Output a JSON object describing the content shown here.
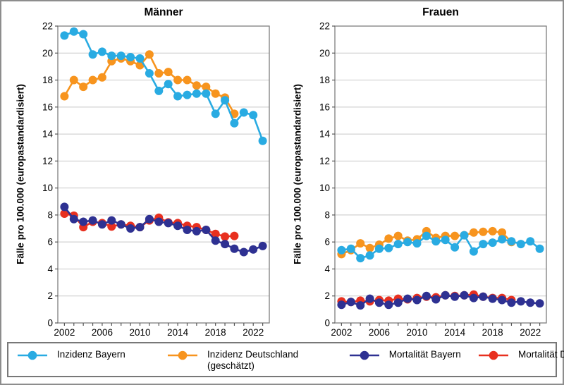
{
  "figure": {
    "kind": "dual-panel line chart",
    "background": "#ffffff",
    "frame_color": "#8d8d8d",
    "grid_color": "#c8c8c8",
    "axis_color": "#7e7e7e",
    "tick_color": "#555555",
    "text_color": "#000000"
  },
  "legend": {
    "items": [
      {
        "label": "Inzidenz Bayern",
        "sublabel": "",
        "color": "#29ABE2",
        "marker": "line-dot"
      },
      {
        "label": "Inzidenz Deutschland",
        "sublabel": "(geschätzt)",
        "color": "#F7941E",
        "marker": "line-dot"
      },
      {
        "label": "Mortalität Bayern",
        "sublabel": "",
        "color": "#2E3192",
        "marker": "line-dot"
      },
      {
        "label": "Mortalität Deutschland",
        "sublabel": "",
        "color": "#E8301F",
        "marker": "line-dot"
      }
    ]
  },
  "chart_data": [
    {
      "type": "line",
      "title": "Männer",
      "ylabel": "Fälle pro 100.000 (europastandardisiert)",
      "xlabel": "",
      "ylim": [
        0,
        22
      ],
      "ytick_step": 2,
      "xlim": [
        2001.3,
        2023.7
      ],
      "xticks_labeled": [
        2002,
        2006,
        2010,
        2014,
        2018,
        2022
      ],
      "xticks_minor_every_year": [
        2002,
        2023
      ],
      "grid": true,
      "legend_position": "bottom-outside-shared",
      "series": [
        {
          "name": "Inzidenz Bayern",
          "color": "#29ABE2",
          "x": [
            2002,
            2003,
            2004,
            2005,
            2006,
            2007,
            2008,
            2009,
            2010,
            2011,
            2012,
            2013,
            2014,
            2015,
            2016,
            2017,
            2018,
            2019,
            2020,
            2021,
            2022,
            2023
          ],
          "y": [
            21.3,
            21.6,
            21.4,
            19.9,
            20.1,
            19.8,
            19.8,
            19.7,
            19.6,
            18.5,
            17.2,
            17.7,
            16.8,
            16.9,
            17.0,
            17.0,
            15.5,
            16.5,
            14.8,
            15.6,
            15.4,
            13.5
          ]
        },
        {
          "name": "Inzidenz Deutschland (geschätzt)",
          "color": "#F7941E",
          "x": [
            2002,
            2003,
            2004,
            2005,
            2006,
            2007,
            2008,
            2009,
            2010,
            2011,
            2012,
            2013,
            2014,
            2015,
            2016,
            2017,
            2018,
            2019,
            2020
          ],
          "y": [
            16.8,
            18.0,
            17.5,
            18.0,
            18.2,
            19.4,
            19.6,
            19.4,
            19.1,
            19.9,
            18.5,
            18.6,
            18.0,
            18.0,
            17.6,
            17.5,
            17.0,
            16.7,
            15.5
          ]
        },
        {
          "name": "Mortalität Bayern",
          "color": "#2E3192",
          "x": [
            2002,
            2003,
            2004,
            2005,
            2006,
            2007,
            2008,
            2009,
            2010,
            2011,
            2012,
            2013,
            2014,
            2015,
            2016,
            2017,
            2018,
            2019,
            2020,
            2021,
            2022,
            2023
          ],
          "y": [
            8.6,
            7.7,
            7.5,
            7.6,
            7.3,
            7.6,
            7.3,
            7.0,
            7.1,
            7.7,
            7.5,
            7.4,
            7.2,
            6.9,
            6.8,
            6.9,
            6.1,
            5.85,
            5.5,
            5.25,
            5.45,
            5.7
          ]
        },
        {
          "name": "Mortalität Deutschland",
          "color": "#E8301F",
          "x": [
            2002,
            2003,
            2004,
            2005,
            2006,
            2007,
            2008,
            2009,
            2010,
            2011,
            2012,
            2013,
            2014,
            2015,
            2016,
            2017,
            2018,
            2019,
            2020
          ],
          "y": [
            8.1,
            7.95,
            7.1,
            7.5,
            7.4,
            7.15,
            7.3,
            7.2,
            7.1,
            7.6,
            7.8,
            7.45,
            7.4,
            7.2,
            7.1,
            6.9,
            6.6,
            6.4,
            6.45
          ]
        }
      ]
    },
    {
      "type": "line",
      "title": "Frauen",
      "ylabel": "Fälle pro 100.000 (europastandardisiert)",
      "xlabel": "",
      "ylim": [
        0,
        22
      ],
      "ytick_step": 2,
      "xlim": [
        2001.3,
        2023.7
      ],
      "xticks_labeled": [
        2002,
        2006,
        2010,
        2014,
        2018,
        2022
      ],
      "xticks_minor_every_year": [
        2002,
        2023
      ],
      "grid": true,
      "legend_position": "bottom-outside-shared",
      "series": [
        {
          "name": "Inzidenz Bayern",
          "color": "#29ABE2",
          "x": [
            2002,
            2003,
            2004,
            2005,
            2006,
            2007,
            2008,
            2009,
            2010,
            2011,
            2012,
            2013,
            2014,
            2015,
            2016,
            2017,
            2018,
            2019,
            2020,
            2021,
            2022,
            2023
          ],
          "y": [
            5.4,
            5.5,
            4.8,
            5.0,
            5.5,
            5.55,
            5.85,
            6.0,
            5.9,
            6.45,
            6.05,
            6.15,
            5.6,
            6.5,
            5.3,
            5.85,
            5.95,
            6.2,
            6.05,
            5.85,
            6.05,
            5.5
          ]
        },
        {
          "name": "Inzidenz Deutschland (geschätzt)",
          "color": "#F7941E",
          "x": [
            2002,
            2003,
            2004,
            2005,
            2006,
            2007,
            2008,
            2009,
            2010,
            2011,
            2012,
            2013,
            2014,
            2015,
            2016,
            2017,
            2018,
            2019,
            2020
          ],
          "y": [
            5.1,
            5.4,
            5.9,
            5.55,
            5.8,
            6.25,
            6.45,
            6.1,
            6.2,
            6.8,
            6.3,
            6.45,
            6.45,
            6.5,
            6.7,
            6.75,
            6.8,
            6.7,
            6.0
          ]
        },
        {
          "name": "Mortalität Bayern",
          "color": "#2E3192",
          "x": [
            2002,
            2003,
            2004,
            2005,
            2006,
            2007,
            2008,
            2009,
            2010,
            2011,
            2012,
            2013,
            2014,
            2015,
            2016,
            2017,
            2018,
            2019,
            2020,
            2021,
            2022,
            2023
          ],
          "y": [
            1.35,
            1.55,
            1.3,
            1.8,
            1.5,
            1.35,
            1.5,
            1.8,
            1.7,
            2.0,
            1.75,
            2.05,
            1.95,
            2.05,
            1.85,
            1.95,
            1.8,
            1.7,
            1.5,
            1.6,
            1.5,
            1.45
          ]
        },
        {
          "name": "Mortalität Deutschland",
          "color": "#E8301F",
          "x": [
            2002,
            2003,
            2004,
            2005,
            2006,
            2007,
            2008,
            2009,
            2010,
            2011,
            2012,
            2013,
            2014,
            2015,
            2016,
            2017,
            2018,
            2019,
            2020
          ],
          "y": [
            1.6,
            1.55,
            1.65,
            1.6,
            1.7,
            1.65,
            1.8,
            1.75,
            1.85,
            1.95,
            1.9,
            2.05,
            2.0,
            2.05,
            2.1,
            1.95,
            1.85,
            1.85,
            1.7
          ]
        }
      ]
    }
  ]
}
